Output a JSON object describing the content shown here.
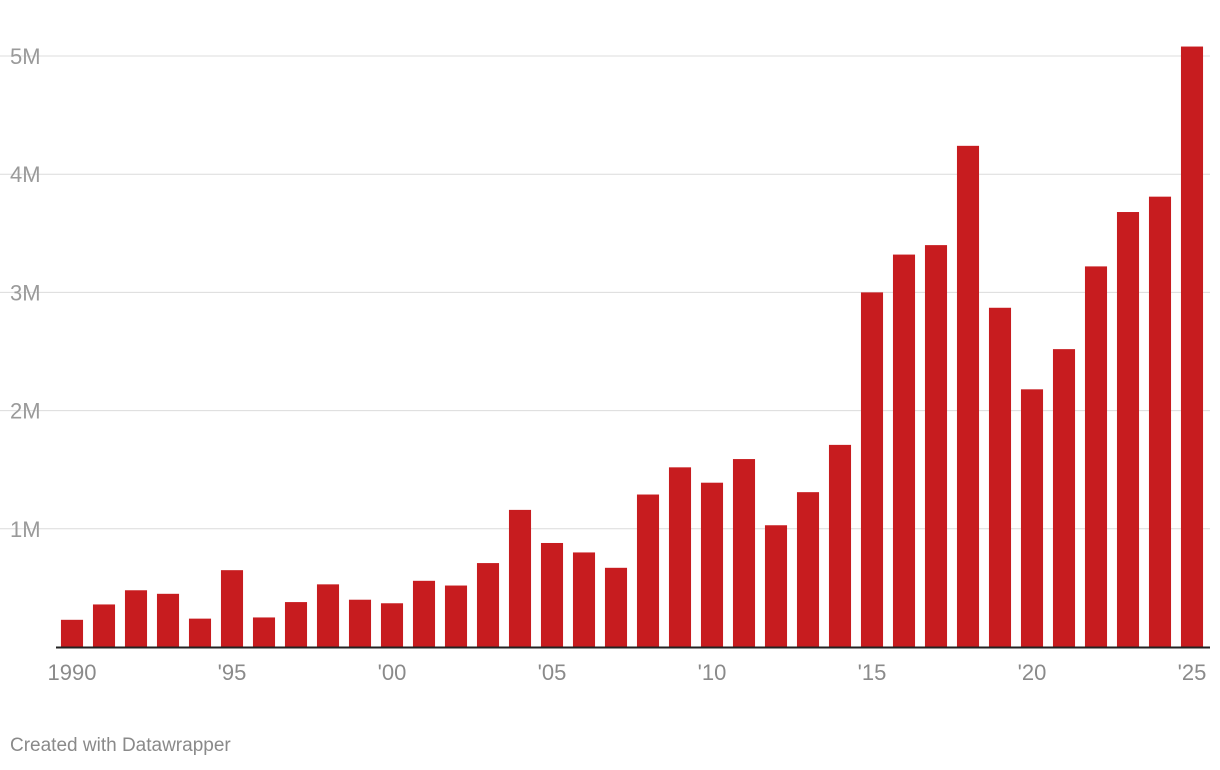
{
  "credit": "Created with Datawrapper",
  "colors": {
    "bar": "#c71c1f",
    "grid": "#dcdcdc",
    "baseline": "#222222",
    "tick_text": "#9a9a9a"
  },
  "chart_data": {
    "type": "bar",
    "title": "",
    "xlabel": "",
    "ylabel": "",
    "ylim": [
      0,
      5000000
    ],
    "grid": true,
    "y_ticks": [
      {
        "value": 1000000,
        "label": "1M"
      },
      {
        "value": 2000000,
        "label": "2M"
      },
      {
        "value": 3000000,
        "label": "3M"
      },
      {
        "value": 4000000,
        "label": "4M"
      },
      {
        "value": 5000000,
        "label": "5M"
      }
    ],
    "x_tick_labels": [
      {
        "category": 1990,
        "label": "1990"
      },
      {
        "category": 1995,
        "label": "'95"
      },
      {
        "category": 2000,
        "label": "'00"
      },
      {
        "category": 2005,
        "label": "'05"
      },
      {
        "category": 2010,
        "label": "'10"
      },
      {
        "category": 2015,
        "label": "'15"
      },
      {
        "category": 2020,
        "label": "'20"
      },
      {
        "category": 2025,
        "label": "'25"
      }
    ],
    "categories": [
      1990,
      1991,
      1992,
      1993,
      1994,
      1995,
      1996,
      1997,
      1998,
      1999,
      2000,
      2001,
      2002,
      2003,
      2004,
      2005,
      2006,
      2007,
      2008,
      2009,
      2010,
      2011,
      2012,
      2013,
      2014,
      2015,
      2016,
      2017,
      2018,
      2019,
      2020,
      2021,
      2022,
      2023,
      2024,
      2025
    ],
    "values": [
      230000,
      360000,
      480000,
      450000,
      240000,
      650000,
      250000,
      380000,
      530000,
      400000,
      370000,
      560000,
      520000,
      710000,
      1160000,
      880000,
      800000,
      670000,
      1290000,
      1520000,
      1390000,
      1590000,
      1030000,
      1310000,
      1710000,
      3000000,
      3320000,
      3400000,
      4240000,
      2870000,
      2180000,
      2520000,
      3220000,
      3680000,
      3810000,
      5080000
    ]
  }
}
